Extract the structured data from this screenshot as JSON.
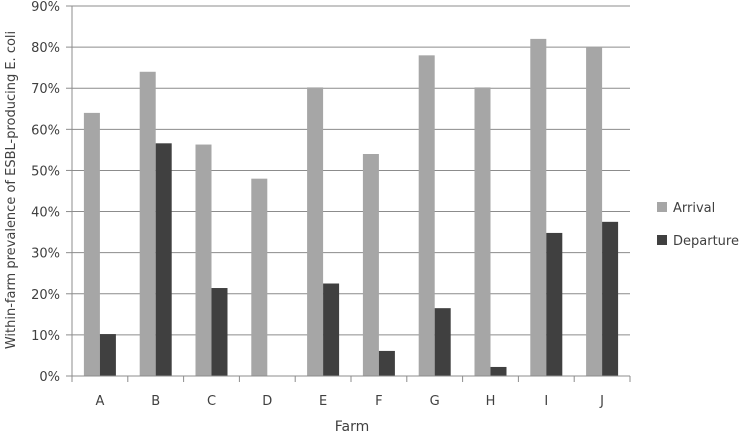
{
  "chart_data": {
    "type": "bar",
    "title": "",
    "xlabel": "Farm",
    "ylabel": "Within-farm prevalence of ESBL-producing E. coli",
    "categories": [
      "A",
      "B",
      "C",
      "D",
      "E",
      "F",
      "G",
      "H",
      "I",
      "J"
    ],
    "series": [
      {
        "name": "Arrival",
        "color": "#a6a6a6",
        "values": [
          64,
          74,
          56.3,
          48,
          70.2,
          54,
          78,
          70.2,
          82,
          80
        ]
      },
      {
        "name": "Departure",
        "color": "#404040",
        "values": [
          10.2,
          56.6,
          21.4,
          0,
          22.5,
          6.1,
          16.5,
          2.2,
          34.8,
          37.5
        ]
      }
    ],
    "ylim": [
      0,
      90
    ],
    "yticks": [
      "0%",
      "10%",
      "20%",
      "30%",
      "40%",
      "50%",
      "60%",
      "70%",
      "80%",
      "90%"
    ],
    "grid": true,
    "legend_position": "right"
  }
}
